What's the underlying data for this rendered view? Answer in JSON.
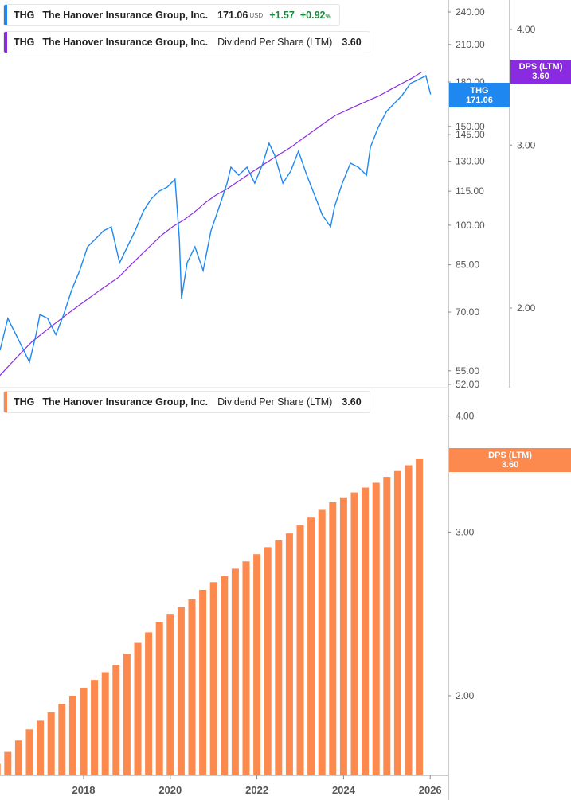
{
  "legend_price": {
    "ticker": "THG",
    "name": "The Hanover Insurance Group, Inc.",
    "price": "171.06",
    "currency": "USD",
    "change": "+1.57",
    "change_pct": "+0.92",
    "pct_sign": "%",
    "color": "#1e88f0"
  },
  "legend_dps_top": {
    "ticker": "THG",
    "name": "The Hanover Insurance Group, Inc.",
    "metric": "Dividend Per Share (LTM)",
    "value": "3.60",
    "color": "#8a2be2"
  },
  "legend_dps_bottom": {
    "ticker": "THG",
    "name": "The Hanover Insurance Group, Inc.",
    "metric": "Dividend Per Share (LTM)",
    "value": "3.60",
    "color": "#fc8a4f"
  },
  "tags": {
    "price": {
      "label": "THG",
      "value": "171.06",
      "color": "#1e88f0"
    },
    "dps_top": {
      "label": "DPS (LTM)",
      "value": "3.60",
      "color": "#8a2be2"
    },
    "dps_bottom": {
      "label": "DPS (LTM)",
      "value": "3.60",
      "color": "#fc8a4f"
    }
  },
  "chart_data": [
    {
      "type": "line",
      "scale": "log",
      "series": [
        {
          "name": "THG",
          "color": "#1e88f0",
          "x": [
            2016.07,
            2016.25,
            2016.44,
            2016.75,
            2016.9,
            2016.99,
            2017.17,
            2017.36,
            2017.54,
            2017.72,
            2017.91,
            2018.09,
            2018.28,
            2018.46,
            2018.64,
            2018.83,
            2019.01,
            2019.19,
            2019.38,
            2019.56,
            2019.75,
            2019.93,
            2020.11,
            2020.21,
            2020.26,
            2020.39,
            2020.57,
            2020.76,
            2020.94,
            2021.13,
            2021.31,
            2021.4,
            2021.58,
            2021.77,
            2021.95,
            2022.14,
            2022.28,
            2022.41,
            2022.6,
            2022.78,
            2022.96,
            2023.15,
            2023.33,
            2023.51,
            2023.7,
            2023.79,
            2023.97,
            2024.16,
            2024.34,
            2024.53,
            2024.62,
            2024.8,
            2024.99,
            2025.17,
            2025.35,
            2025.54,
            2025.72,
            2025.9,
            2026.01
          ],
          "y": [
            59.8,
            68.2,
            63.8,
            57.0,
            63.8,
            69.3,
            68.2,
            63.8,
            69.3,
            76.5,
            83.0,
            91.5,
            94.6,
            97.7,
            99.3,
            85.7,
            91.5,
            97.7,
            106.0,
            111.4,
            115.1,
            116.9,
            120.8,
            94.6,
            74.0,
            85.7,
            91.5,
            83.0,
            97.7,
            107.8,
            118.8,
            126.9,
            122.8,
            126.9,
            118.8,
            129.0,
            140.0,
            133.3,
            118.8,
            124.8,
            135.5,
            122.8,
            113.2,
            104.3,
            99.3,
            107.8,
            118.8,
            129.0,
            126.9,
            122.8,
            137.7,
            149.4,
            159.5,
            164.8,
            170.3,
            178.9,
            181.7,
            184.8,
            171.06
          ]
        },
        {
          "name": "DPS (LTM)",
          "color": "#8a2be2",
          "axis": "right"
        }
      ],
      "yticks_left": [
        "240.00",
        "210.00",
        "180.00",
        "150.00",
        "145.00",
        "130.00",
        "115.00",
        "100.00",
        "85.00",
        "70.00",
        "55.00",
        "52.00"
      ],
      "yticks_right": [
        "4.00",
        "3.00",
        "2.00"
      ],
      "ylim_left": [
        52,
        240
      ]
    },
    {
      "type": "bar",
      "scale": "log",
      "color": "#fc8a4f",
      "x": [
        2016.0,
        2016.25,
        2016.5,
        2016.75,
        2017.0,
        2017.25,
        2017.5,
        2017.75,
        2018.0,
        2018.25,
        2018.5,
        2018.75,
        2019.0,
        2019.25,
        2019.5,
        2019.75,
        2020.0,
        2020.25,
        2020.5,
        2020.75,
        2021.0,
        2021.25,
        2021.5,
        2021.75,
        2022.0,
        2022.25,
        2022.5,
        2022.75,
        2023.0,
        2023.25,
        2023.5,
        2023.75,
        2024.0,
        2024.25,
        2024.5,
        2024.75,
        2025.0,
        2025.25,
        2025.5,
        2025.75
      ],
      "values": [
        1.69,
        1.74,
        1.79,
        1.84,
        1.88,
        1.92,
        1.96,
        2.0,
        2.04,
        2.08,
        2.12,
        2.16,
        2.22,
        2.28,
        2.34,
        2.4,
        2.45,
        2.49,
        2.54,
        2.6,
        2.65,
        2.69,
        2.74,
        2.79,
        2.84,
        2.89,
        2.94,
        2.99,
        3.05,
        3.11,
        3.17,
        3.23,
        3.27,
        3.31,
        3.35,
        3.39,
        3.44,
        3.49,
        3.54,
        3.6
      ],
      "yticks": [
        "4.00",
        "3.00",
        "2.00"
      ],
      "xticks": [
        "2018",
        "2020",
        "2022",
        "2024",
        "2026"
      ]
    }
  ]
}
